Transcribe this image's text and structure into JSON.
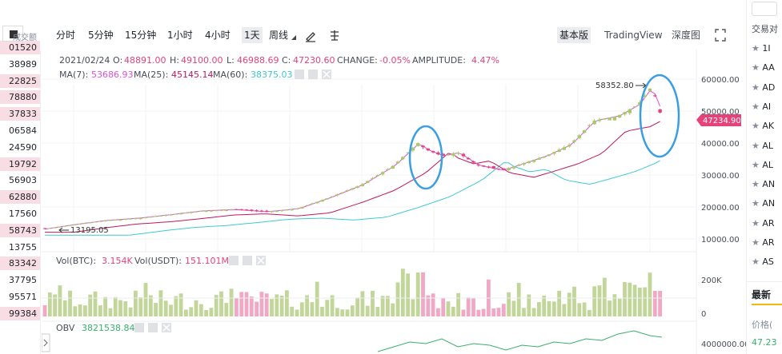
{
  "orderbook": {
    "header": "成交额",
    "values": [
      "01520",
      "38989",
      "22825",
      "78880",
      "37833",
      "06584",
      "24590",
      "19792",
      "56903",
      "62880",
      "17560",
      "58743",
      "13755",
      "83342",
      "37795",
      "95571",
      "99384"
    ],
    "pink": [
      true,
      false,
      true,
      true,
      true,
      false,
      false,
      true,
      false,
      true,
      false,
      true,
      false,
      true,
      false,
      false,
      true
    ]
  },
  "toolbar": {
    "intervals": [
      "分时",
      "5分钟",
      "15分钟",
      "1小时",
      "4小时",
      "1天",
      "周线"
    ],
    "active": "1天",
    "views": [
      "基本版",
      "TradingView",
      "深度图"
    ],
    "active_view": "基本版"
  },
  "info": {
    "date": "2021/02/24",
    "o_label": "O:",
    "o": "48891.00",
    "h_label": "H:",
    "h": "49100.00",
    "l_label": "L:",
    "l": "46988.69",
    "c_label": "C:",
    "c": "47230.60",
    "change_label": "CHANGE:",
    "change": "-0.05%",
    "amp_label": "AMPLITUDE:",
    "amp": "4.47%",
    "ma7_label": "MA(7):",
    "ma7": "53686.93",
    "ma25_label": "MA(25):",
    "ma25": "45145.14",
    "ma60_label": "MA(60):",
    "ma60": "38375.03",
    "vol_btc_label": "Vol(BTC):",
    "vol_btc": "3.154K",
    "vol_usdt_label": "Vol(USDT):",
    "vol_usdt": "151.101M",
    "obv_label": "OBV",
    "obv": "3821538.84"
  },
  "price_axis": [
    "60000.00",
    "50000.00",
    "40000.00",
    "30000.00",
    "20000.00",
    "10000.00"
  ],
  "vol_axis": [
    "200K",
    "0"
  ],
  "obv_axis": [
    "4000000.00"
  ],
  "current_price": "47234.90",
  "high_marker": "58352.80",
  "low_marker": "13195.05",
  "right_panel": {
    "top": "",
    "header": "交易对",
    "pairs": [
      "1I",
      "AA",
      "AD",
      "AI",
      "AK",
      "AL",
      "AL",
      "AN",
      "AN",
      "AR",
      "AR",
      "AS"
    ],
    "latest": "最新",
    "price_label": "价格(",
    "price_value": "47.23"
  },
  "colors": {
    "up": "#a8c96b",
    "down": "#e6427a",
    "ma7": "#e04fe0",
    "ma25": "#c2185b",
    "ma60": "#3ec9d6",
    "accent": "#f0b90b",
    "circle": "#3a9ee4"
  }
}
